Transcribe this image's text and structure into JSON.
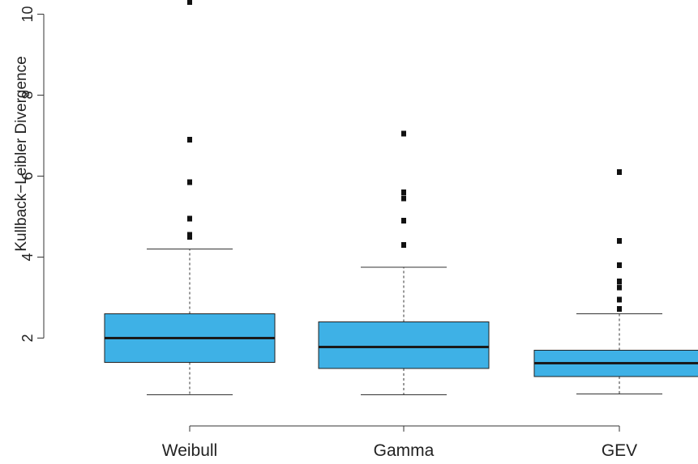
{
  "chart_data": {
    "type": "boxplot",
    "title": "",
    "xlabel": "",
    "ylabel": "Kullback−Leibler Divergence",
    "ylim": [
      0.35,
      10.25
    ],
    "yticks": [
      "2",
      "4",
      "6",
      "8",
      "10"
    ],
    "grid": false,
    "legend": "none",
    "box_color": "#3EB1E6",
    "categories": [
      "Weibull",
      "Gamma",
      "GEV"
    ],
    "boxes": [
      {
        "name": "Weibull",
        "whisker_low": 0.6,
        "q1": 1.4,
        "median": 2.0,
        "q3": 2.6,
        "whisker_high": 4.2,
        "outliers": [
          4.5,
          4.55,
          4.95,
          5.85,
          6.9,
          10.3
        ]
      },
      {
        "name": "Gamma",
        "whisker_low": 0.6,
        "q1": 1.25,
        "median": 1.78,
        "q3": 2.4,
        "whisker_high": 3.75,
        "outliers": [
          4.3,
          4.9,
          5.45,
          5.6,
          7.05
        ]
      },
      {
        "name": "GEV",
        "whisker_low": 0.62,
        "q1": 1.05,
        "median": 1.38,
        "q3": 1.7,
        "whisker_high": 2.6,
        "outliers": [
          2.72,
          2.95,
          3.25,
          3.4,
          3.8,
          4.4,
          6.1
        ]
      }
    ]
  }
}
